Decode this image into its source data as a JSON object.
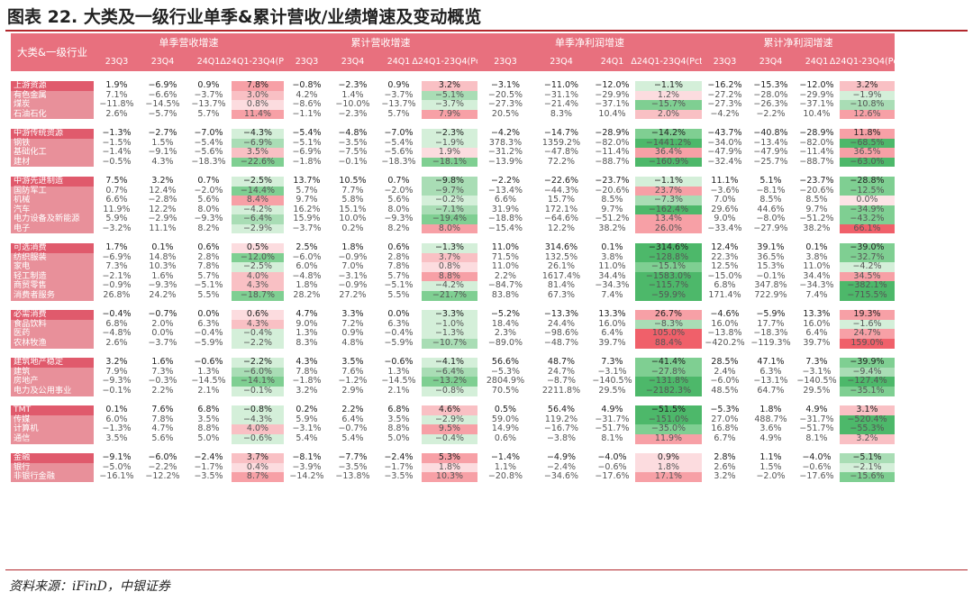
{
  "title": "图表 22. 大类及一级行业单季&累计营收/业绩增速及变动概览",
  "source": "资料来源：iFinD，中银证券",
  "header": {
    "corner": "大类&一级行业",
    "groups": [
      "单季营收增速",
      "累计营收增速",
      "单季净利润增速",
      "累计净利润增速"
    ],
    "subcols": [
      "23Q3",
      "23Q4",
      "24Q1",
      "Δ24Q1-23Q4(Pct)"
    ]
  },
  "colors": {
    "header_bg": "#e8707e",
    "label_bg": "#e8909a",
    "label_first_bg": "#e05a6c",
    "pos_strong": "#f0606a",
    "neg_strong": "#4db86a"
  },
  "groups": [
    {
      "rows": [
        {
          "name": "上游资源",
          "v": [
            "1.9%",
            "−6.9%",
            "0.9%",
            "7.8%",
            "−0.8%",
            "−2.3%",
            "0.9%",
            "3.2%",
            "−3.1%",
            "−11.0%",
            "−12.0%",
            "−1.1%",
            "−16.2%",
            "−15.3%",
            "−12.0%",
            "3.2%"
          ]
        },
        {
          "name": "有色金属",
          "v": [
            "7.1%",
            "−6.6%",
            "−3.7%",
            "3.0%",
            "4.2%",
            "1.4%",
            "−3.7%",
            "−5.1%",
            "−20.5%",
            "−31.1%",
            "−29.9%",
            "1.2%",
            "−27.2%",
            "−28.0%",
            "−29.9%",
            "−1.9%"
          ]
        },
        {
          "name": "煤炭",
          "v": [
            "−11.8%",
            "−14.5%",
            "−13.7%",
            "0.8%",
            "−8.6%",
            "−10.0%",
            "−13.7%",
            "−3.7%",
            "−27.3%",
            "−21.4%",
            "−37.1%",
            "−15.7%",
            "−27.3%",
            "−26.3%",
            "−37.1%",
            "−10.8%"
          ]
        },
        {
          "name": "石油石化",
          "v": [
            "2.6%",
            "−5.7%",
            "5.7%",
            "11.4%",
            "−1.1%",
            "−2.3%",
            "5.7%",
            "7.9%",
            "20.5%",
            "8.3%",
            "10.4%",
            "2.0%",
            "−4.2%",
            "−2.2%",
            "10.4%",
            "12.6%"
          ]
        }
      ]
    },
    {
      "rows": [
        {
          "name": "中游传统资源",
          "v": [
            "−1.3%",
            "−2.7%",
            "−7.0%",
            "−4.3%",
            "−5.4%",
            "−4.8%",
            "−7.0%",
            "−2.3%",
            "−4.2%",
            "−14.7%",
            "−28.9%",
            "−14.2%",
            "−43.7%",
            "−40.8%",
            "−28.9%",
            "11.8%"
          ]
        },
        {
          "name": "钢铁",
          "v": [
            "−1.5%",
            "1.5%",
            "−5.4%",
            "−6.9%",
            "−5.1%",
            "−3.5%",
            "−5.4%",
            "−1.9%",
            "378.3%",
            "1359.2%",
            "−82.0%",
            "−1441.2%",
            "−34.0%",
            "−13.4%",
            "−82.0%",
            "−68.5%"
          ]
        },
        {
          "name": "基础化工",
          "v": [
            "−1.4%",
            "−9.1%",
            "−5.6%",
            "3.5%",
            "−6.9%",
            "−7.5%",
            "−5.6%",
            "1.9%",
            "−31.2%",
            "−47.8%",
            "−11.4%",
            "36.4%",
            "−47.9%",
            "−47.9%",
            "−11.4%",
            "36.5%"
          ]
        },
        {
          "name": "建材",
          "v": [
            "−0.5%",
            "4.3%",
            "−18.3%",
            "−22.6%",
            "−1.8%",
            "−0.1%",
            "−18.3%",
            "−18.1%",
            "−13.9%",
            "72.2%",
            "−88.7%",
            "−160.9%",
            "−32.4%",
            "−25.7%",
            "−88.7%",
            "−63.0%"
          ]
        }
      ]
    },
    {
      "rows": [
        {
          "name": "中游先进制造",
          "v": [
            "7.5%",
            "3.2%",
            "0.7%",
            "−2.5%",
            "13.7%",
            "10.5%",
            "0.7%",
            "−9.8%",
            "−2.2%",
            "−22.6%",
            "−23.7%",
            "−1.1%",
            "11.1%",
            "5.1%",
            "−23.7%",
            "−28.8%"
          ]
        },
        {
          "name": "国防军工",
          "v": [
            "0.7%",
            "12.4%",
            "−2.0%",
            "−14.4%",
            "5.7%",
            "7.7%",
            "−2.0%",
            "−9.7%",
            "−13.4%",
            "−44.3%",
            "−20.6%",
            "23.7%",
            "−3.6%",
            "−8.1%",
            "−20.6%",
            "−12.5%"
          ]
        },
        {
          "name": "机械",
          "v": [
            "6.6%",
            "−2.8%",
            "5.6%",
            "8.4%",
            "9.7%",
            "5.8%",
            "5.6%",
            "−0.2%",
            "6.6%",
            "15.7%",
            "8.5%",
            "−7.3%",
            "7.0%",
            "8.5%",
            "8.5%",
            "0.0%"
          ]
        },
        {
          "name": "汽车",
          "v": [
            "11.9%",
            "12.2%",
            "8.0%",
            "−4.2%",
            "16.2%",
            "15.1%",
            "8.0%",
            "−7.1%",
            "31.9%",
            "172.1%",
            "9.7%",
            "−162.4%",
            "29.6%",
            "44.6%",
            "9.7%",
            "−34.9%"
          ]
        },
        {
          "name": "电力设备及新能源",
          "v": [
            "5.9%",
            "−2.9%",
            "−9.3%",
            "−6.4%",
            "15.9%",
            "10.0%",
            "−9.3%",
            "−19.4%",
            "−18.8%",
            "−64.6%",
            "−51.2%",
            "13.4%",
            "9.0%",
            "−8.0%",
            "−51.2%",
            "−43.2%"
          ]
        },
        {
          "name": "电子",
          "v": [
            "−3.2%",
            "11.1%",
            "8.2%",
            "−2.9%",
            "−3.7%",
            "0.2%",
            "8.2%",
            "8.0%",
            "−15.4%",
            "12.2%",
            "38.2%",
            "26.0%",
            "−33.4%",
            "−27.9%",
            "38.2%",
            "66.1%"
          ]
        }
      ]
    },
    {
      "rows": [
        {
          "name": "可选消费",
          "v": [
            "1.7%",
            "0.1%",
            "0.6%",
            "0.5%",
            "2.5%",
            "1.8%",
            "0.6%",
            "−1.3%",
            "11.0%",
            "314.6%",
            "0.1%",
            "−314.6%",
            "12.4%",
            "39.1%",
            "0.1%",
            "−39.0%"
          ]
        },
        {
          "name": "纺织服装",
          "v": [
            "−6.9%",
            "14.8%",
            "2.8%",
            "−12.0%",
            "−6.0%",
            "−0.9%",
            "2.8%",
            "3.7%",
            "71.5%",
            "132.5%",
            "3.8%",
            "−128.8%",
            "22.3%",
            "36.5%",
            "3.8%",
            "−32.7%"
          ]
        },
        {
          "name": "家电",
          "v": [
            "7.3%",
            "10.3%",
            "7.8%",
            "−2.5%",
            "6.0%",
            "7.0%",
            "7.8%",
            "0.8%",
            "11.0%",
            "26.1%",
            "11.0%",
            "−15.1%",
            "12.5%",
            "15.3%",
            "11.0%",
            "−4.2%"
          ]
        },
        {
          "name": "轻工制造",
          "v": [
            "−2.1%",
            "1.6%",
            "5.7%",
            "4.0%",
            "−4.8%",
            "−3.1%",
            "5.7%",
            "8.8%",
            "2.2%",
            "1617.4%",
            "34.4%",
            "−1583.0%",
            "−15.0%",
            "−0.1%",
            "34.4%",
            "34.5%"
          ]
        },
        {
          "name": "商贸零售",
          "v": [
            "−0.9%",
            "−9.3%",
            "−5.1%",
            "4.3%",
            "1.8%",
            "−0.9%",
            "−5.1%",
            "−4.2%",
            "−84.7%",
            "81.4%",
            "−34.3%",
            "−115.7%",
            "6.8%",
            "347.8%",
            "−34.3%",
            "−382.1%"
          ]
        },
        {
          "name": "消费者服务",
          "v": [
            "26.8%",
            "24.2%",
            "5.5%",
            "−18.7%",
            "28.2%",
            "27.2%",
            "5.5%",
            "−21.7%",
            "83.8%",
            "67.3%",
            "7.4%",
            "−59.9%",
            "171.4%",
            "722.9%",
            "7.4%",
            "−715.5%"
          ]
        }
      ]
    },
    {
      "rows": [
        {
          "name": "必需消费",
          "v": [
            "−0.4%",
            "−0.7%",
            "0.0%",
            "0.6%",
            "4.7%",
            "3.3%",
            "0.0%",
            "−3.3%",
            "−5.2%",
            "−13.3%",
            "13.3%",
            "26.7%",
            "−4.6%",
            "−5.9%",
            "13.3%",
            "19.3%"
          ]
        },
        {
          "name": "食品饮料",
          "v": [
            "6.8%",
            "2.0%",
            "6.3%",
            "4.3%",
            "9.0%",
            "7.2%",
            "6.3%",
            "−1.0%",
            "18.4%",
            "24.4%",
            "16.0%",
            "−8.3%",
            "16.0%",
            "17.7%",
            "16.0%",
            "−1.6%"
          ]
        },
        {
          "name": "医药",
          "v": [
            "−4.8%",
            "0.0%",
            "−0.4%",
            "−0.4%",
            "1.3%",
            "0.9%",
            "−0.4%",
            "−1.3%",
            "2.3%",
            "−98.6%",
            "6.4%",
            "105.0%",
            "−13.8%",
            "−18.3%",
            "6.4%",
            "24.7%"
          ]
        },
        {
          "name": "农林牧渔",
          "v": [
            "2.6%",
            "−3.7%",
            "−5.9%",
            "−2.2%",
            "8.3%",
            "4.8%",
            "−5.9%",
            "−10.7%",
            "−89.0%",
            "−48.7%",
            "39.7%",
            "88.4%",
            "−420.2%",
            "−119.3%",
            "39.7%",
            "159.0%"
          ]
        }
      ]
    },
    {
      "rows": [
        {
          "name": "建筑地产稳定",
          "v": [
            "3.2%",
            "1.6%",
            "−0.6%",
            "−2.2%",
            "4.3%",
            "3.5%",
            "−0.6%",
            "−4.1%",
            "56.6%",
            "48.7%",
            "7.3%",
            "−41.4%",
            "28.5%",
            "47.1%",
            "7.3%",
            "−39.9%"
          ]
        },
        {
          "name": "建筑",
          "v": [
            "7.9%",
            "7.3%",
            "1.3%",
            "−6.0%",
            "7.8%",
            "7.6%",
            "1.3%",
            "−6.4%",
            "−5.3%",
            "24.7%",
            "−3.1%",
            "−27.8%",
            "2.4%",
            "6.3%",
            "−3.1%",
            "−9.4%"
          ]
        },
        {
          "name": "房地产",
          "v": [
            "−9.3%",
            "−0.3%",
            "−14.5%",
            "−14.1%",
            "−1.8%",
            "−1.2%",
            "−14.5%",
            "−13.2%",
            "2804.9%",
            "−8.7%",
            "−140.5%",
            "−131.8%",
            "−6.0%",
            "−13.1%",
            "−140.5%",
            "−127.4%"
          ]
        },
        {
          "name": "电力及公用事业",
          "v": [
            "−0.1%",
            "2.2%",
            "2.1%",
            "−0.1%",
            "3.2%",
            "2.9%",
            "2.1%",
            "−0.8%",
            "70.5%",
            "2211.8%",
            "29.5%",
            "−2182.3%",
            "48.5%",
            "64.7%",
            "29.5%",
            "−35.1%"
          ]
        }
      ]
    },
    {
      "rows": [
        {
          "name": "TMT",
          "v": [
            "0.1%",
            "7.6%",
            "6.8%",
            "−0.8%",
            "0.2%",
            "2.2%",
            "6.8%",
            "4.6%",
            "0.5%",
            "56.4%",
            "4.9%",
            "−51.5%",
            "−5.3%",
            "1.8%",
            "4.9%",
            "3.1%"
          ]
        },
        {
          "name": "传媒",
          "v": [
            "6.0%",
            "7.8%",
            "3.5%",
            "−4.3%",
            "5.9%",
            "6.4%",
            "3.5%",
            "−2.9%",
            "59.0%",
            "119.2%",
            "−31.7%",
            "−151.0%",
            "27.0%",
            "488.7%",
            "−31.7%",
            "−520.4%"
          ]
        },
        {
          "name": "计算机",
          "v": [
            "−1.3%",
            "4.7%",
            "8.8%",
            "4.0%",
            "−3.1%",
            "−0.7%",
            "8.8%",
            "9.5%",
            "14.9%",
            "−16.7%",
            "−51.7%",
            "−35.0%",
            "16.8%",
            "3.6%",
            "−51.7%",
            "−55.3%"
          ]
        },
        {
          "name": "通信",
          "v": [
            "3.5%",
            "5.6%",
            "5.0%",
            "−0.6%",
            "5.4%",
            "5.4%",
            "5.0%",
            "−0.4%",
            "0.6%",
            "−3.8%",
            "8.1%",
            "11.9%",
            "6.7%",
            "4.9%",
            "8.1%",
            "3.2%"
          ]
        }
      ]
    },
    {
      "rows": [
        {
          "name": "金融",
          "v": [
            "−9.1%",
            "−6.0%",
            "−2.4%",
            "3.7%",
            "−8.1%",
            "−7.7%",
            "−2.4%",
            "5.3%",
            "−1.4%",
            "−4.9%",
            "−4.0%",
            "0.9%",
            "2.8%",
            "1.1%",
            "−4.0%",
            "−5.1%"
          ]
        },
        {
          "name": "银行",
          "v": [
            "−5.0%",
            "−2.2%",
            "−1.7%",
            "0.4%",
            "−3.9%",
            "−3.5%",
            "−1.7%",
            "1.8%",
            "1.1%",
            "−2.4%",
            "−0.6%",
            "1.8%",
            "2.6%",
            "1.5%",
            "−0.6%",
            "−2.1%"
          ]
        },
        {
          "name": "非银行金融",
          "v": [
            "−16.1%",
            "−12.2%",
            "−3.5%",
            "8.7%",
            "−14.2%",
            "−13.8%",
            "−3.5%",
            "10.3%",
            "−20.8%",
            "−34.6%",
            "−17.6%",
            "17.1%",
            "3.2%",
            "−2.0%",
            "−17.6%",
            "−15.6%"
          ]
        }
      ]
    }
  ]
}
